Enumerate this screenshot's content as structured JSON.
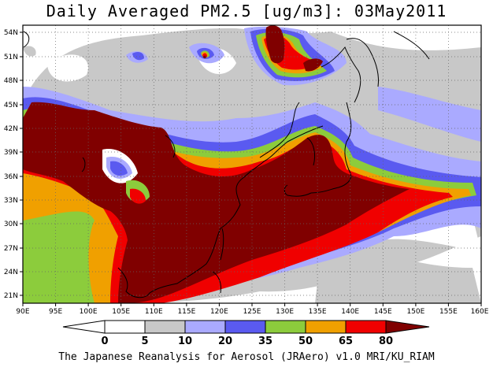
{
  "title": "Daily Averaged PM2.5 [ug/m3]: 03May2011",
  "footer": "The Japanese Reanalysis for Aerosol (JRAero) v1.0 MRI/KU_RIAM",
  "map": {
    "lon_range": [
      90,
      160
    ],
    "lat_range": [
      20,
      55
    ],
    "x_ticks": [
      "90E",
      "95E",
      "100E",
      "105E",
      "110E",
      "115E",
      "120E",
      "125E",
      "130E",
      "135E",
      "140E",
      "145E",
      "150E",
      "155E",
      "160E"
    ],
    "y_ticks": [
      "21N",
      "24N",
      "27N",
      "30N",
      "33N",
      "36N",
      "39N",
      "42N",
      "45N",
      "48N",
      "51N",
      "54N"
    ],
    "grid": "dotted"
  },
  "colorbar": {
    "levels": [
      "0",
      "5",
      "10",
      "20",
      "35",
      "50",
      "65",
      "80"
    ],
    "colors": [
      "#ffffff",
      "#c8c8c8",
      "#aaaaff",
      "#5a5af0",
      "#8ccc3c",
      "#f0a000",
      "#f00000",
      "#800000"
    ]
  }
}
